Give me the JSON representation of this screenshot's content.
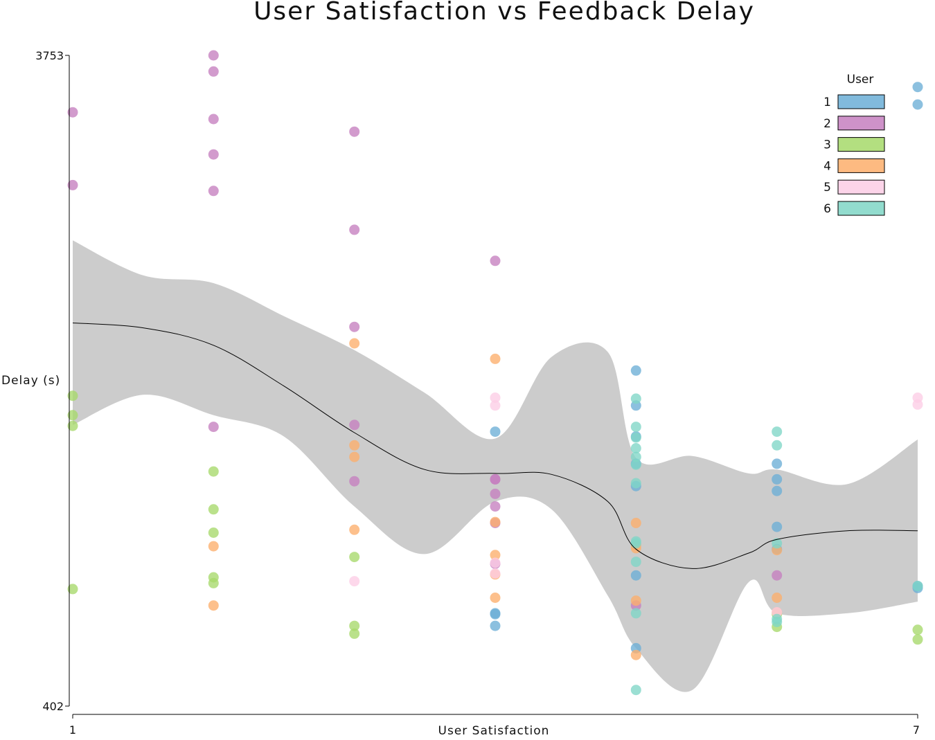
{
  "chart_data": {
    "type": "scatter",
    "title": "User Satisfaction vs Feedback Delay",
    "xlabel": "User Satisfaction",
    "ylabel": "Delay (s)",
    "xlim": [
      1,
      7
    ],
    "ylim": [
      402,
      3753
    ],
    "x_tick_labels": [
      "1",
      "7"
    ],
    "y_tick_labels": [
      "3753",
      "402"
    ],
    "legend": {
      "title": "User",
      "position": "top-right"
    },
    "series": [
      {
        "name": "1",
        "color": "#6baed6",
        "points": [
          [
            5,
            2130
          ],
          [
            5,
            1950
          ],
          [
            5,
            1790
          ],
          [
            5,
            1650
          ],
          [
            5,
            1535
          ],
          [
            5,
            1075
          ],
          [
            5,
            700
          ],
          [
            6,
            1650
          ],
          [
            6,
            1570
          ],
          [
            6,
            1510
          ],
          [
            6,
            1325
          ],
          [
            6,
            1210
          ],
          [
            7,
            1020
          ],
          [
            7,
            1010
          ],
          [
            7,
            3590
          ],
          [
            7,
            3500
          ],
          [
            4,
            815
          ],
          [
            4,
            1815
          ],
          [
            4,
            880
          ],
          [
            4,
            875
          ]
        ]
      },
      {
        "name": "2",
        "color": "#c57fbf",
        "points": [
          [
            1,
            3460
          ],
          [
            1,
            3085
          ],
          [
            2,
            3753
          ],
          [
            2,
            3670
          ],
          [
            2,
            3425
          ],
          [
            2,
            3243
          ],
          [
            2,
            3055
          ],
          [
            2,
            1840
          ],
          [
            3,
            3360
          ],
          [
            3,
            2855
          ],
          [
            3,
            2355
          ],
          [
            3,
            1850
          ],
          [
            3,
            1560
          ],
          [
            4,
            2695
          ],
          [
            4,
            1345
          ],
          [
            4,
            1570
          ],
          [
            4,
            1570
          ],
          [
            4,
            1495
          ],
          [
            4,
            1430
          ],
          [
            4,
            1135
          ],
          [
            5,
            920
          ],
          [
            6,
            1075
          ]
        ]
      },
      {
        "name": "3",
        "color": "#a6d96a",
        "points": [
          [
            1,
            2000
          ],
          [
            1,
            1900
          ],
          [
            1,
            1845
          ],
          [
            1,
            1005
          ],
          [
            2,
            1610
          ],
          [
            2,
            1415
          ],
          [
            2,
            1295
          ],
          [
            2,
            1065
          ],
          [
            2,
            1035
          ],
          [
            3,
            1170
          ],
          [
            3,
            815
          ],
          [
            3,
            775
          ],
          [
            6,
            875
          ],
          [
            6,
            810
          ],
          [
            7,
            745
          ],
          [
            7,
            795
          ]
        ]
      },
      {
        "name": "4",
        "color": "#fdae6b",
        "points": [
          [
            2,
            1225
          ],
          [
            2,
            920
          ],
          [
            3,
            2270
          ],
          [
            3,
            1745
          ],
          [
            3,
            1685
          ],
          [
            3,
            1310
          ],
          [
            4,
            2190
          ],
          [
            4,
            1180
          ],
          [
            4,
            1080
          ],
          [
            4,
            960
          ],
          [
            4,
            1350
          ],
          [
            5,
            1345
          ],
          [
            5,
            1230
          ],
          [
            5,
            1215
          ],
          [
            5,
            945
          ],
          [
            5,
            665
          ],
          [
            6,
            1205
          ],
          [
            6,
            960
          ],
          [
            6,
            885
          ]
        ]
      },
      {
        "name": "5",
        "color": "#fccde5",
        "points": [
          [
            3,
            1045
          ],
          [
            4,
            1990
          ],
          [
            4,
            1950
          ],
          [
            4,
            1140
          ],
          [
            4,
            1085
          ],
          [
            6,
            885
          ],
          [
            7,
            1990
          ],
          [
            7,
            1955
          ]
        ]
      },
      {
        "name": "6",
        "color": "#7fd6c6",
        "points": [
          [
            5,
            1985
          ],
          [
            5,
            1840
          ],
          [
            5,
            1785
          ],
          [
            5,
            1730
          ],
          [
            5,
            1685
          ],
          [
            5,
            1645
          ],
          [
            5,
            1550
          ],
          [
            5,
            1250
          ],
          [
            5,
            1240
          ],
          [
            5,
            1145
          ],
          [
            5,
            880
          ],
          [
            5,
            485
          ],
          [
            6,
            1815
          ],
          [
            6,
            1745
          ],
          [
            6,
            1240
          ],
          [
            6,
            850
          ],
          [
            7,
            1020
          ],
          [
            6,
            835
          ]
        ]
      }
    ],
    "smooth": {
      "x": [
        1,
        1.5,
        2,
        2.5,
        3,
        3.5,
        4,
        4.4,
        4.8,
        5,
        5.4,
        5.8,
        6,
        6.5,
        7
      ],
      "fit": [
        2375,
        2350,
        2260,
        2050,
        1810,
        1620,
        1600,
        1595,
        1455,
        1210,
        1110,
        1190,
        1260,
        1305,
        1305
      ],
      "lower": [
        1850,
        2005,
        1900,
        1790,
        1430,
        1185,
        1455,
        1415,
        970,
        700,
        485,
        1040,
        880,
        880,
        940
      ],
      "upper": [
        2800,
        2620,
        2580,
        2410,
        2235,
        2015,
        1780,
        2200,
        2225,
        1680,
        1690,
        1600,
        1620,
        1545,
        1775
      ]
    }
  }
}
